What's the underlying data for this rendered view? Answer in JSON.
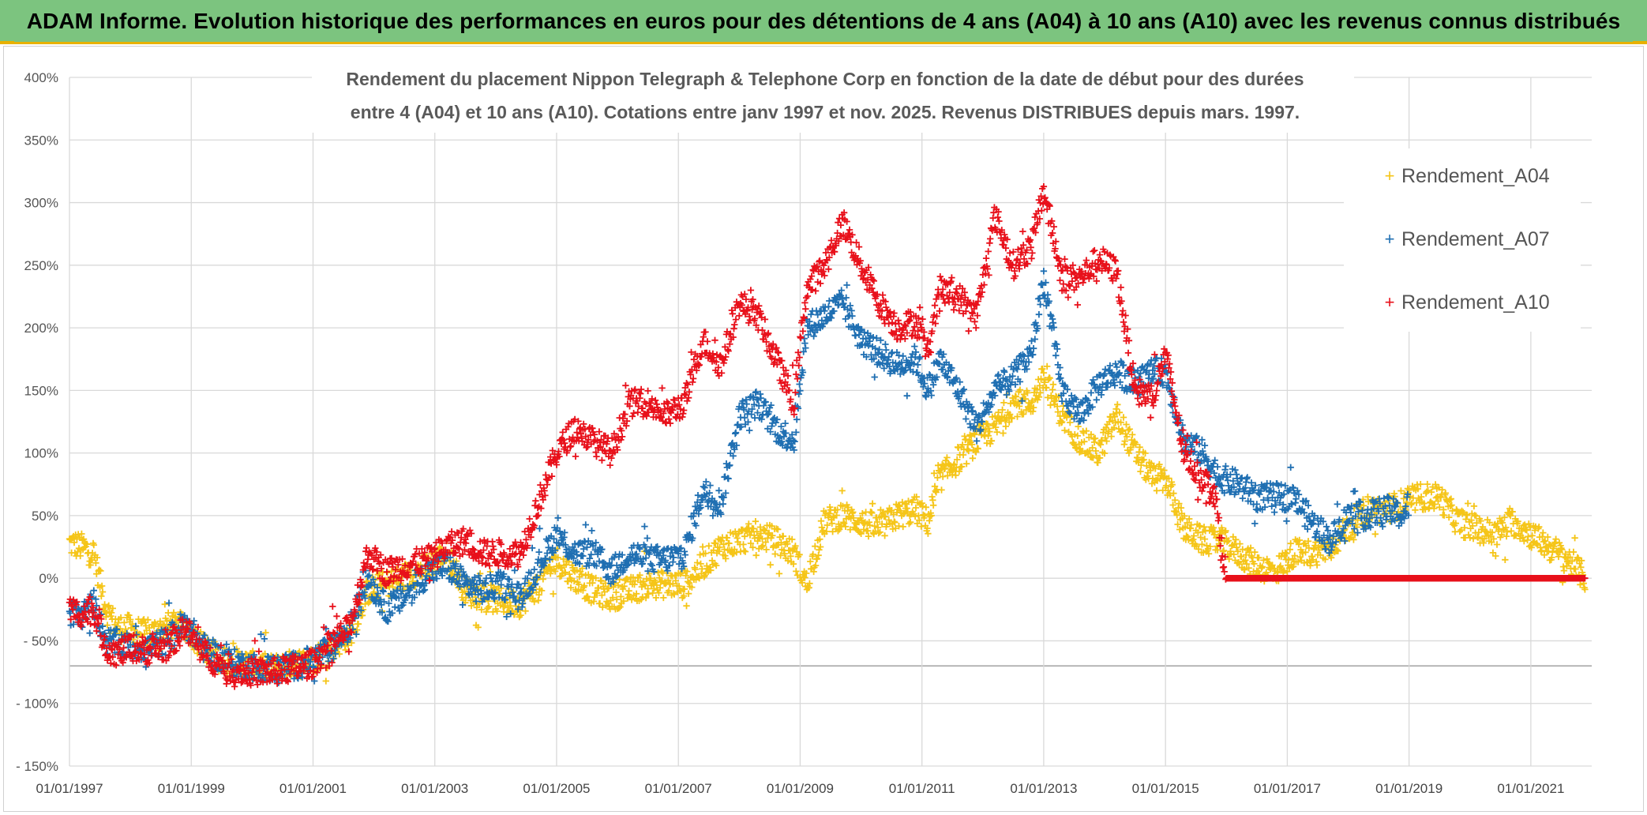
{
  "banner": {
    "title": "ADAM Informe. Evolution historique des performances en euros pour des détentions de 4 ans (A04) à 10 ans (A10) avec les revenus connus distribués"
  },
  "colors": {
    "banner_bg": "#7cc47f",
    "banner_border": "#e8b100",
    "A04": "#f5c518",
    "A07": "#1f6fb2",
    "A10": "#e8101a",
    "grid": "#d9d9d9"
  },
  "chart_data": {
    "type": "scatter",
    "title_lines": [
      "Rendement du placement Nippon Telegraph & Telephone Corp en fonction de la date de début pour des durées",
      "entre 4 (A04) et 10 ans (A10). Cotations entre janv 1997 et nov. 2025. Revenus DISTRIBUES depuis mars. 1997."
    ],
    "x_ticks": [
      "01/01/1997",
      "01/01/1999",
      "01/01/2001",
      "01/01/2003",
      "01/01/2005",
      "01/01/2007",
      "01/01/2009",
      "01/01/2011",
      "01/01/2013",
      "01/01/2015",
      "01/01/2017",
      "01/01/2019",
      "01/01/2021"
    ],
    "y_ticks": [
      "400%",
      "350%",
      "300%",
      "250%",
      "200%",
      "150%",
      "100%",
      "50%",
      "0%",
      "- 50%",
      "- 100%",
      "- 150%"
    ],
    "xlim": [
      1997.0,
      2022.0
    ],
    "ylim": [
      -150,
      400
    ],
    "grid": true,
    "legend_position": "top-right",
    "series": [
      {
        "name": "Rendement_A04",
        "marker": "+",
        "points": [
          [
            1997.0,
            28
          ],
          [
            1997.2,
            25
          ],
          [
            1997.4,
            20
          ],
          [
            1997.6,
            -25
          ],
          [
            1997.8,
            -40
          ],
          [
            1998.0,
            -40
          ],
          [
            1998.3,
            -45
          ],
          [
            1998.6,
            -38
          ],
          [
            1998.9,
            -38
          ],
          [
            1999.2,
            -55
          ],
          [
            1999.5,
            -65
          ],
          [
            1999.9,
            -68
          ],
          [
            2000.3,
            -72
          ],
          [
            2000.7,
            -68
          ],
          [
            2001.0,
            -65
          ],
          [
            2001.3,
            -55
          ],
          [
            2001.6,
            -45
          ],
          [
            2001.9,
            -10
          ],
          [
            2002.2,
            -5
          ],
          [
            2002.5,
            0
          ],
          [
            2002.9,
            10
          ],
          [
            2003.2,
            20
          ],
          [
            2003.5,
            -10
          ],
          [
            2003.8,
            -15
          ],
          [
            2004.1,
            -18
          ],
          [
            2004.4,
            -20
          ],
          [
            2004.7,
            -5
          ],
          [
            2005.0,
            15
          ],
          [
            2005.3,
            0
          ],
          [
            2005.6,
            -10
          ],
          [
            2005.9,
            -15
          ],
          [
            2006.2,
            -10
          ],
          [
            2006.5,
            -5
          ],
          [
            2006.8,
            -5
          ],
          [
            2007.1,
            -5
          ],
          [
            2007.4,
            10
          ],
          [
            2007.7,
            25
          ],
          [
            2008.0,
            30
          ],
          [
            2008.3,
            35
          ],
          [
            2008.6,
            30
          ],
          [
            2008.9,
            20
          ],
          [
            2009.1,
            -5
          ],
          [
            2009.4,
            45
          ],
          [
            2009.7,
            50
          ],
          [
            2010.0,
            45
          ],
          [
            2010.3,
            40
          ],
          [
            2010.6,
            50
          ],
          [
            2010.9,
            55
          ],
          [
            2011.1,
            45
          ],
          [
            2011.3,
            80
          ],
          [
            2011.6,
            95
          ],
          [
            2011.9,
            110
          ],
          [
            2012.2,
            120
          ],
          [
            2012.5,
            140
          ],
          [
            2012.8,
            140
          ],
          [
            2013.0,
            160
          ],
          [
            2013.3,
            130
          ],
          [
            2013.6,
            110
          ],
          [
            2013.9,
            100
          ],
          [
            2014.2,
            130
          ],
          [
            2014.5,
            100
          ],
          [
            2014.8,
            80
          ],
          [
            2015.0,
            80
          ],
          [
            2015.3,
            40
          ],
          [
            2015.6,
            30
          ],
          [
            2015.9,
            30
          ],
          [
            2016.2,
            20
          ],
          [
            2016.5,
            10
          ],
          [
            2016.8,
            5
          ],
          [
            2017.1,
            20
          ],
          [
            2017.4,
            20
          ],
          [
            2017.7,
            25
          ],
          [
            2018.0,
            40
          ],
          [
            2018.3,
            55
          ],
          [
            2018.6,
            55
          ],
          [
            2018.9,
            60
          ],
          [
            2019.2,
            65
          ],
          [
            2019.5,
            65
          ],
          [
            2019.8,
            45
          ],
          [
            2020.1,
            40
          ],
          [
            2020.4,
            35
          ],
          [
            2020.7,
            45
          ],
          [
            2021.0,
            35
          ],
          [
            2021.3,
            25
          ],
          [
            2021.6,
            15
          ],
          [
            2021.9,
            0
          ]
        ]
      },
      {
        "name": "Rendement_A07",
        "marker": "+",
        "points": [
          [
            1997.0,
            -28
          ],
          [
            1997.2,
            -30
          ],
          [
            1997.4,
            -20
          ],
          [
            1997.6,
            -50
          ],
          [
            1997.8,
            -52
          ],
          [
            1998.0,
            -55
          ],
          [
            1998.3,
            -55
          ],
          [
            1998.6,
            -50
          ],
          [
            1998.9,
            -35
          ],
          [
            1999.2,
            -55
          ],
          [
            1999.5,
            -65
          ],
          [
            1999.9,
            -70
          ],
          [
            2000.3,
            -72
          ],
          [
            2000.7,
            -70
          ],
          [
            2001.0,
            -65
          ],
          [
            2001.3,
            -55
          ],
          [
            2001.6,
            -40
          ],
          [
            2001.9,
            0
          ],
          [
            2002.2,
            -25
          ],
          [
            2002.5,
            -15
          ],
          [
            2002.9,
            5
          ],
          [
            2003.2,
            10
          ],
          [
            2003.5,
            -5
          ],
          [
            2003.8,
            -10
          ],
          [
            2004.1,
            -5
          ],
          [
            2004.4,
            -15
          ],
          [
            2004.7,
            10
          ],
          [
            2005.0,
            35
          ],
          [
            2005.3,
            20
          ],
          [
            2005.6,
            20
          ],
          [
            2005.9,
            5
          ],
          [
            2006.2,
            20
          ],
          [
            2006.5,
            15
          ],
          [
            2006.8,
            15
          ],
          [
            2007.1,
            20
          ],
          [
            2007.4,
            70
          ],
          [
            2007.7,
            60
          ],
          [
            2008.0,
            130
          ],
          [
            2008.3,
            140
          ],
          [
            2008.6,
            120
          ],
          [
            2008.9,
            110
          ],
          [
            2009.1,
            200
          ],
          [
            2009.4,
            210
          ],
          [
            2009.7,
            220
          ],
          [
            2010.0,
            190
          ],
          [
            2010.3,
            180
          ],
          [
            2010.6,
            170
          ],
          [
            2010.9,
            175
          ],
          [
            2011.1,
            150
          ],
          [
            2011.3,
            175
          ],
          [
            2011.6,
            150
          ],
          [
            2011.9,
            120
          ],
          [
            2012.2,
            150
          ],
          [
            2012.5,
            160
          ],
          [
            2012.8,
            180
          ],
          [
            2013.0,
            240
          ],
          [
            2013.3,
            150
          ],
          [
            2013.6,
            130
          ],
          [
            2013.9,
            155
          ],
          [
            2014.2,
            165
          ],
          [
            2014.5,
            155
          ],
          [
            2014.8,
            165
          ],
          [
            2015.0,
            165
          ],
          [
            2015.3,
            110
          ],
          [
            2015.6,
            100
          ],
          [
            2015.9,
            80
          ],
          [
            2016.2,
            75
          ],
          [
            2016.5,
            65
          ],
          [
            2016.8,
            65
          ],
          [
            2017.1,
            65
          ],
          [
            2017.4,
            45
          ],
          [
            2017.7,
            30
          ],
          [
            2018.0,
            50
          ],
          [
            2018.3,
            50
          ],
          [
            2018.6,
            55
          ],
          [
            2018.9,
            50
          ],
          [
            2019.0,
            60
          ]
        ]
      },
      {
        "name": "Rendement_A10",
        "marker": "+",
        "points": [
          [
            1997.0,
            -25
          ],
          [
            1997.2,
            -28
          ],
          [
            1997.4,
            -25
          ],
          [
            1997.6,
            -55
          ],
          [
            1997.8,
            -60
          ],
          [
            1998.0,
            -55
          ],
          [
            1998.3,
            -58
          ],
          [
            1998.6,
            -55
          ],
          [
            1998.9,
            -40
          ],
          [
            1999.2,
            -60
          ],
          [
            1999.5,
            -70
          ],
          [
            1999.9,
            -75
          ],
          [
            2000.3,
            -75
          ],
          [
            2000.7,
            -72
          ],
          [
            2001.0,
            -68
          ],
          [
            2001.3,
            -52
          ],
          [
            2001.6,
            -40
          ],
          [
            2001.9,
            20
          ],
          [
            2002.2,
            5
          ],
          [
            2002.5,
            10
          ],
          [
            2002.9,
            15
          ],
          [
            2003.2,
            25
          ],
          [
            2003.5,
            30
          ],
          [
            2003.8,
            20
          ],
          [
            2004.1,
            20
          ],
          [
            2004.4,
            20
          ],
          [
            2004.7,
            60
          ],
          [
            2005.0,
            100
          ],
          [
            2005.3,
            120
          ],
          [
            2005.6,
            110
          ],
          [
            2005.9,
            100
          ],
          [
            2006.2,
            140
          ],
          [
            2006.5,
            140
          ],
          [
            2006.8,
            130
          ],
          [
            2007.1,
            140
          ],
          [
            2007.4,
            190
          ],
          [
            2007.7,
            170
          ],
          [
            2008.0,
            220
          ],
          [
            2008.3,
            210
          ],
          [
            2008.6,
            175
          ],
          [
            2008.9,
            140
          ],
          [
            2009.1,
            230
          ],
          [
            2009.4,
            250
          ],
          [
            2009.7,
            285
          ],
          [
            2010.0,
            250
          ],
          [
            2010.3,
            220
          ],
          [
            2010.6,
            200
          ],
          [
            2010.9,
            205
          ],
          [
            2011.1,
            180
          ],
          [
            2011.3,
            230
          ],
          [
            2011.6,
            225
          ],
          [
            2011.9,
            210
          ],
          [
            2012.2,
            290
          ],
          [
            2012.5,
            250
          ],
          [
            2012.8,
            265
          ],
          [
            2013.0,
            310
          ],
          [
            2013.3,
            240
          ],
          [
            2013.6,
            240
          ],
          [
            2013.9,
            255
          ],
          [
            2014.2,
            245
          ],
          [
            2014.5,
            150
          ],
          [
            2014.8,
            145
          ],
          [
            2015.0,
            180
          ],
          [
            2015.3,
            100
          ],
          [
            2015.6,
            80
          ],
          [
            2015.8,
            70
          ],
          [
            2016.0,
            0
          ],
          [
            2017.0,
            0
          ],
          [
            2018.0,
            0
          ],
          [
            2019.0,
            0
          ],
          [
            2020.0,
            0
          ],
          [
            2021.0,
            0
          ],
          [
            2021.9,
            0
          ]
        ]
      }
    ]
  }
}
